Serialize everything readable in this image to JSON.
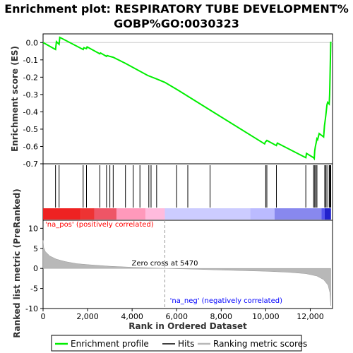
{
  "chart_data": {
    "type": "line",
    "title_line1": "Enrichment plot: RESPIRATORY TUBE DEVELOPMENT%",
    "title_line2": "GOBP%GO:0030323",
    "top_panel": {
      "ylabel": "Enrichment score (ES)",
      "ylim": [
        -0.7,
        0.05
      ],
      "yticks": [
        "0.0",
        "-0.1",
        "-0.2",
        "-0.3",
        "-0.4",
        "-0.5",
        "-0.6",
        "-0.7"
      ],
      "ytick_values": [
        0.0,
        -0.1,
        -0.2,
        -0.3,
        -0.4,
        -0.5,
        -0.6,
        -0.7
      ],
      "series_name": "Enrichment profile",
      "line_color": "#00ee00",
      "es_curve": [
        [
          0,
          0.0
        ],
        [
          560,
          -0.04
        ],
        [
          600,
          0.005
        ],
        [
          720,
          -0.01
        ],
        [
          750,
          0.03
        ],
        [
          1800,
          -0.04
        ],
        [
          1830,
          -0.03
        ],
        [
          1950,
          -0.035
        ],
        [
          1980,
          -0.025
        ],
        [
          2550,
          -0.065
        ],
        [
          2580,
          -0.06
        ],
        [
          2850,
          -0.08
        ],
        [
          2880,
          -0.075
        ],
        [
          3000,
          -0.08
        ],
        [
          3150,
          -0.085
        ],
        [
          3700,
          -0.12
        ],
        [
          4700,
          -0.19
        ],
        [
          5100,
          -0.21
        ],
        [
          5470,
          -0.23
        ],
        [
          6000,
          -0.27
        ],
        [
          7500,
          -0.39
        ],
        [
          9950,
          -0.585
        ],
        [
          9980,
          -0.575
        ],
        [
          10050,
          -0.565
        ],
        [
          10480,
          -0.595
        ],
        [
          10520,
          -0.58
        ],
        [
          11800,
          -0.665
        ],
        [
          11830,
          -0.64
        ],
        [
          12150,
          -0.665
        ],
        [
          12180,
          -0.67
        ],
        [
          12200,
          -0.625
        ],
        [
          12230,
          -0.6
        ],
        [
          12270,
          -0.575
        ],
        [
          12300,
          -0.555
        ],
        [
          12330,
          -0.56
        ],
        [
          12400,
          -0.525
        ],
        [
          12600,
          -0.545
        ],
        [
          12640,
          -0.48
        ],
        [
          12680,
          -0.44
        ],
        [
          12700,
          -0.42
        ],
        [
          12750,
          -0.36
        ],
        [
          12780,
          -0.345
        ],
        [
          12850,
          -0.355
        ],
        [
          12870,
          -0.3
        ],
        [
          12880,
          -0.25
        ],
        [
          12900,
          -0.13
        ],
        [
          12920,
          0.005
        ]
      ]
    },
    "hits_panel": {
      "series_name": "Hits",
      "hit_positions": [
        560,
        720,
        1800,
        1950,
        2550,
        2850,
        3000,
        3150,
        3700,
        4050,
        4350,
        4750,
        4850,
        5100,
        6000,
        6500,
        7500,
        10000,
        10050,
        10480,
        11800,
        12150,
        12200,
        12250,
        12300,
        12650,
        12700,
        12750,
        12850,
        12880,
        12900,
        12920
      ],
      "heat_colors": [
        "#ee2222",
        "#ee3333",
        "#ee5566",
        "#ff99bb",
        "#ffbbdd",
        "#ccccff",
        "#bbbbff",
        "#8888ee",
        "#5555ee",
        "#2222cc"
      ],
      "heat_breaks": [
        0,
        1700,
        2300,
        3300,
        4600,
        5470,
        9300,
        10400,
        12500,
        12650,
        12930
      ]
    },
    "bottom_panel": {
      "ylabel": "Ranked list metric (PreRanked)",
      "ylim": [
        -10,
        12
      ],
      "yticks": [
        "10",
        "5",
        "0",
        "-5",
        "-10"
      ],
      "ytick_values": [
        10,
        5,
        0,
        -5,
        -10
      ],
      "series_name": "Ranking metric scores",
      "fill_color": "#b8b8b8",
      "metric_curve": [
        [
          0,
          7.0
        ],
        [
          30,
          5.2
        ],
        [
          100,
          4.2
        ],
        [
          300,
          3.1
        ],
        [
          600,
          2.3
        ],
        [
          1000,
          1.7
        ],
        [
          1500,
          1.2
        ],
        [
          2000,
          0.95
        ],
        [
          3000,
          0.55
        ],
        [
          4000,
          0.3
        ],
        [
          5000,
          0.1
        ],
        [
          5470,
          0.0
        ],
        [
          6500,
          -0.15
        ],
        [
          8000,
          -0.4
        ],
        [
          10000,
          -0.7
        ],
        [
          11000,
          -0.95
        ],
        [
          11800,
          -1.3
        ],
        [
          12300,
          -1.9
        ],
        [
          12600,
          -2.8
        ],
        [
          12800,
          -4.2
        ],
        [
          12880,
          -6.0
        ],
        [
          12920,
          -9.3
        ]
      ],
      "zero_cross_label": "Zero cross at 5470",
      "zero_cross_x": 5470,
      "pos_label": "'na_pos' (positively correlated)",
      "neg_label": "'na_neg' (negatively correlated)",
      "pos_color": "#ff0000",
      "neg_color": "#0000ff"
    },
    "x_axis": {
      "xlabel": "Rank in Ordered Dataset",
      "xlim": [
        0,
        13000
      ],
      "xticks": [
        "0",
        "2,000",
        "4,000",
        "6,000",
        "8,000",
        "10,000",
        "12,000"
      ],
      "xtick_values": [
        0,
        2000,
        4000,
        6000,
        8000,
        10000,
        12000
      ]
    },
    "legend": {
      "items": [
        {
          "label": "Enrichment profile",
          "color": "#00ee00"
        },
        {
          "label": "Hits",
          "color": "#000000"
        },
        {
          "label": "Ranking metric scores",
          "color": "#b8b8b8"
        }
      ]
    }
  }
}
